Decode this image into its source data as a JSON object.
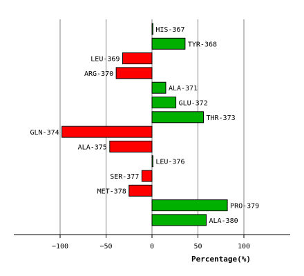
{
  "chart_data": {
    "type": "bar",
    "orientation": "horizontal",
    "categories": [
      "HIS-367",
      "TYR-368",
      "LEU-369",
      "ARG-370",
      "ALA-371",
      "GLU-372",
      "THR-373",
      "GLN-374",
      "ALA-375",
      "LEU-376",
      "SER-377",
      "MET-378",
      "PRO-379",
      "ALA-380"
    ],
    "values": [
      1,
      36,
      -32,
      -39,
      15,
      26,
      56,
      -98,
      -46,
      1,
      -11,
      -25,
      82,
      59
    ],
    "xlabel": "Percentage(%)",
    "ylabel": "",
    "xlim": [
      -150,
      150
    ],
    "xticks": [
      -100,
      -50,
      0,
      50,
      100
    ],
    "grid": true,
    "colors": {
      "positive": "#00b000",
      "negative": "#ff0000",
      "grid": "#808080",
      "outline": "#000000"
    }
  }
}
